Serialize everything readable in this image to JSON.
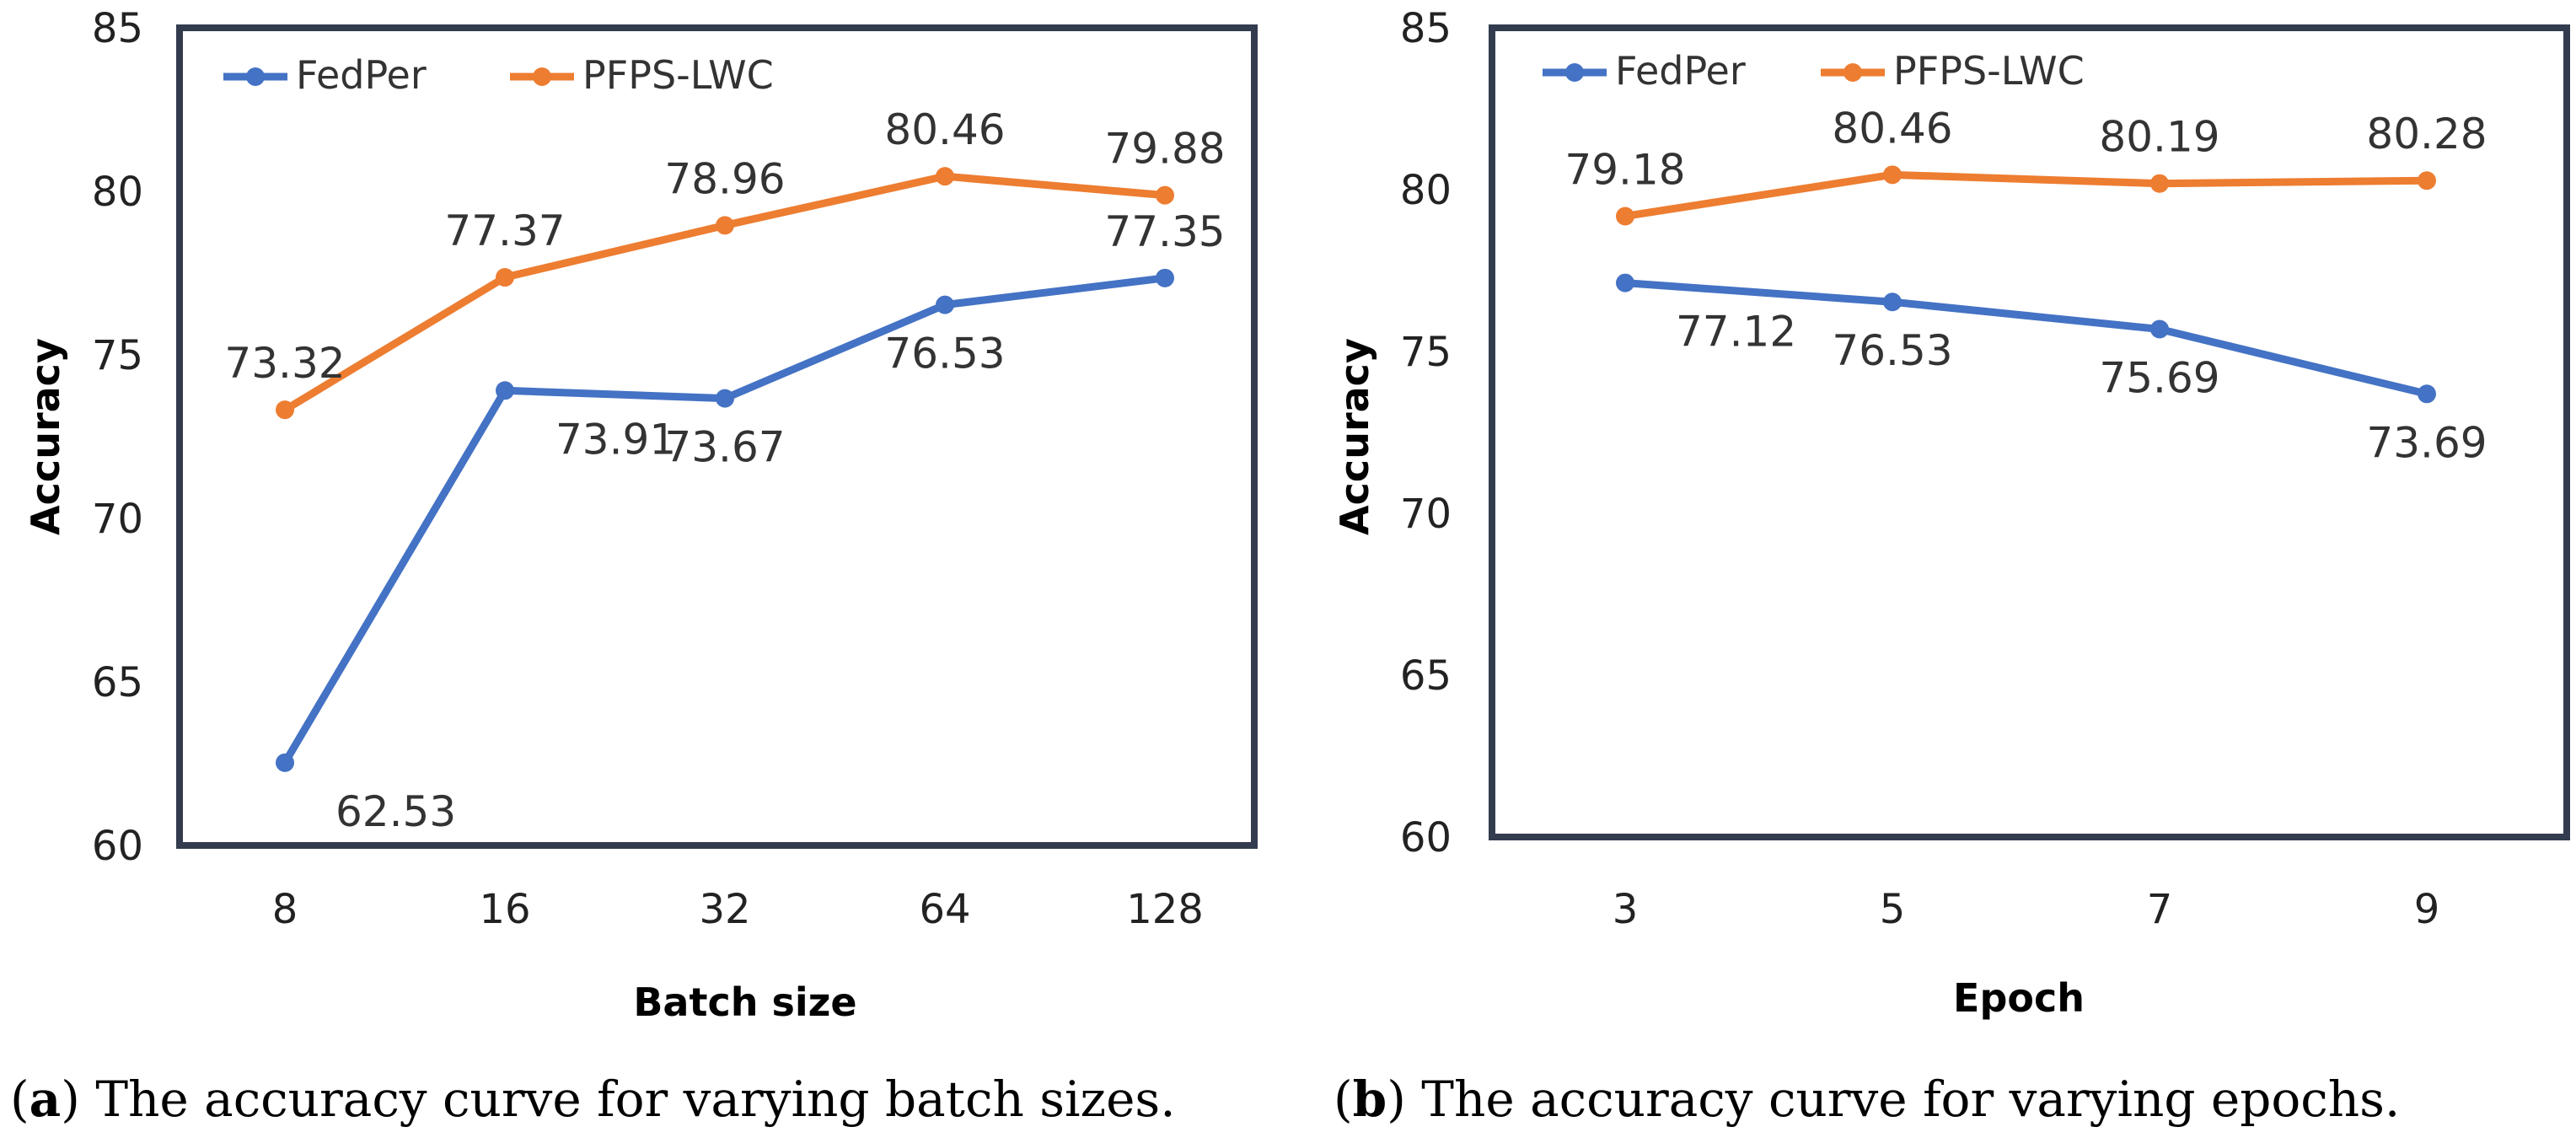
{
  "chart_data": [
    {
      "type": "line",
      "title": "",
      "caption_letter": "a",
      "caption_text": "The accuracy curve for varying batch sizes.",
      "xlabel": "Batch size",
      "ylabel": "Accuracy",
      "categories": [
        "8",
        "16",
        "32",
        "64",
        "128"
      ],
      "ylim": [
        60,
        85
      ],
      "yticks": [
        60,
        65,
        70,
        75,
        80,
        85
      ],
      "grid": false,
      "legend": "top-left",
      "series": [
        {
          "name": "FedPer",
          "color": "#4472C4",
          "values": [
            62.53,
            73.91,
            73.67,
            76.53,
            77.35
          ],
          "label_side": [
            "below-right",
            "below-right",
            "below",
            "below",
            "above"
          ]
        },
        {
          "name": "PFPS-LWC",
          "color": "#ED7D31",
          "values": [
            73.32,
            77.37,
            78.96,
            80.46,
            79.88
          ],
          "label_side": [
            "above",
            "above",
            "above",
            "above",
            "above"
          ]
        }
      ]
    },
    {
      "type": "line",
      "title": "",
      "caption_letter": "b",
      "caption_text": "The accuracy curve for varying epochs.",
      "xlabel": "Epoch",
      "ylabel": "Accuracy",
      "categories": [
        "3",
        "5",
        "7",
        "9"
      ],
      "ylim": [
        60,
        85
      ],
      "yticks": [
        60,
        65,
        70,
        75,
        80,
        85
      ],
      "grid": false,
      "legend": "top-left",
      "series": [
        {
          "name": "FedPer",
          "color": "#4472C4",
          "values": [
            77.12,
            76.53,
            75.69,
            73.69
          ],
          "label_side": [
            "below-right",
            "below",
            "below",
            "below"
          ]
        },
        {
          "name": "PFPS-LWC",
          "color": "#ED7D31",
          "values": [
            79.18,
            80.46,
            80.19,
            80.28
          ],
          "label_side": [
            "above",
            "above",
            "above",
            "above"
          ]
        }
      ]
    }
  ]
}
